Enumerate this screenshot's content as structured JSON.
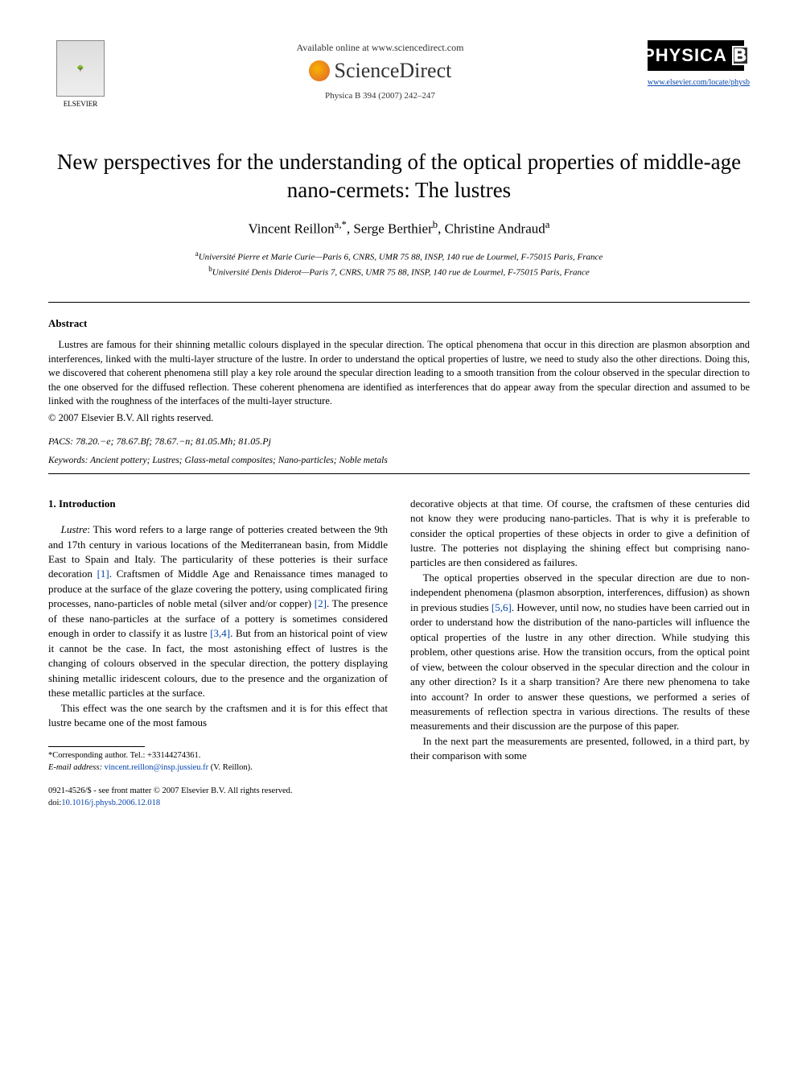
{
  "header": {
    "publisher_name": "ELSEVIER",
    "available_line": "Available online at www.sciencedirect.com",
    "platform_name": "ScienceDirect",
    "citation": "Physica B 394 (2007) 242–247",
    "journal_logo_text": "PHYSICA",
    "journal_logo_letter": "B",
    "journal_url": "www.elsevier.com/locate/physb"
  },
  "article": {
    "title": "New perspectives for the understanding of the optical properties of middle-age nano-cermets: The lustres",
    "authors_html": "Vincent Reillon<sup>a,*</sup>, Serge Berthier<sup>b</sup>, Christine Andraud<sup>a</sup>",
    "affiliations": {
      "a": "Université Pierre et Marie Curie—Paris 6, CNRS, UMR 75 88, INSP, 140 rue de Lourmel, F-75015 Paris, France",
      "b": "Université Denis Diderot—Paris 7, CNRS, UMR 75 88, INSP, 140 rue de Lourmel, F-75015 Paris, France"
    }
  },
  "abstract": {
    "heading": "Abstract",
    "body": "Lustres are famous for their shinning metallic colours displayed in the specular direction. The optical phenomena that occur in this direction are plasmon absorption and interferences, linked with the multi-layer structure of the lustre. In order to understand the optical properties of lustre, we need to study also the other directions. Doing this, we discovered that coherent phenomena still play a key role around the specular direction leading to a smooth transition from the colour observed in the specular direction to the one observed for the diffused reflection. These coherent phenomena are identified as interferences that do appear away from the specular direction and assumed to be linked with the roughness of the interfaces of the multi-layer structure.",
    "copyright": "© 2007 Elsevier B.V. All rights reserved."
  },
  "pacs": {
    "label": "PACS:",
    "codes": "78.20.−e; 78.67.Bf; 78.67.−n; 81.05.Mh; 81.05.Pj"
  },
  "keywords": {
    "label": "Keywords:",
    "list": "Ancient pottery; Lustres; Glass-metal composites; Nano-particles; Noble metals"
  },
  "body": {
    "section1_heading": "1. Introduction",
    "col1_p1_lead": "Lustre",
    "col1_p1_rest": ": This word refers to a large range of potteries created between the 9th and 17th century in various locations of the Mediterranean basin, from Middle East to Spain and Italy. The particularity of these potteries is their surface decoration ",
    "ref1": "[1]",
    "col1_p1_cont": ". Craftsmen of Middle Age and Renaissance times managed to produce at the surface of the glaze covering the pottery, using complicated firing processes, nano-particles of noble metal (silver and/or copper) ",
    "ref2": "[2]",
    "col1_p1_cont2": ". The presence of these nano-particles at the surface of a pottery is sometimes considered enough in order to classify it as lustre ",
    "ref34": "[3,4]",
    "col1_p1_cont3": ". But from an historical point of view it cannot be the case. In fact, the most astonishing effect of lustres is the changing of colours observed in the specular direction, the pottery displaying shining metallic iridescent colours, due to the presence and the organization of these metallic particles at the surface.",
    "col1_p2": "This effect was the one search by the craftsmen and it is for this effect that lustre became one of the most famous",
    "col2_p1": "decorative objects at that time. Of course, the craftsmen of these centuries did not know they were producing nano-particles. That is why it is preferable to consider the optical properties of these objects in order to give a definition of lustre. The potteries not displaying the shining effect but comprising nano-particles are then considered as failures.",
    "col2_p2a": "The optical properties observed in the specular direction are due to non-independent phenomena (plasmon absorption, interferences, diffusion) as shown in previous studies ",
    "ref56": "[5,6]",
    "col2_p2b": ". However, until now, no studies have been carried out in order to understand how the distribution of the nano-particles will influence the optical properties of the lustre in any other direction. While studying this problem, other questions arise. How the transition occurs, from the optical point of view, between the colour observed in the specular direction and the colour in any other direction? Is it a sharp transition? Are there new phenomena to take into account? In order to answer these questions, we performed a series of measurements of reflection spectra in various directions. The results of these measurements and their discussion are the purpose of this paper.",
    "col2_p3": "In the next part the measurements are presented, followed, in a third part, by their comparison with some"
  },
  "footnotes": {
    "corresponding": "*Corresponding author. Tel.: +33144274361.",
    "email_label": "E-mail address:",
    "email": "vincent.reillon@insp.jussieu.fr",
    "email_name": "(V. Reillon)."
  },
  "footer": {
    "front_matter": "0921-4526/$ - see front matter © 2007 Elsevier B.V. All rights reserved.",
    "doi_label": "doi:",
    "doi": "10.1016/j.physb.2006.12.018"
  },
  "colors": {
    "link": "#0645ad",
    "text": "#000000",
    "bg": "#ffffff"
  }
}
